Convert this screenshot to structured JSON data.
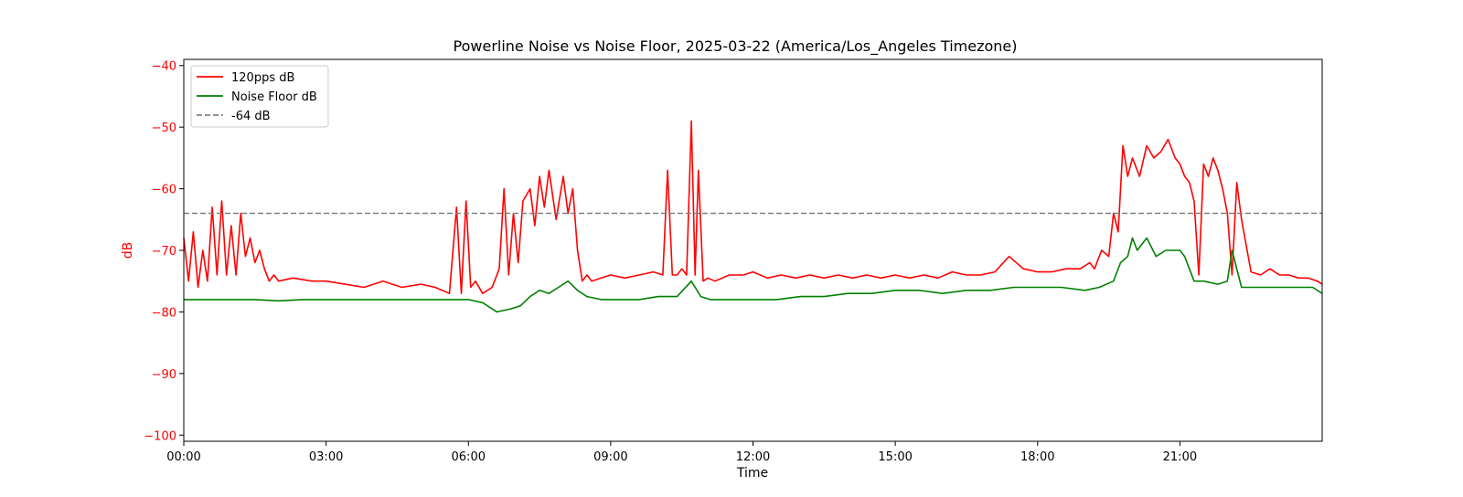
{
  "chart_data": {
    "type": "line",
    "title": "Powerline Noise vs Noise Floor, 2025-03-22 (America/Los_Angeles Timezone)",
    "xlabel": "Time",
    "ylabel": "dB",
    "xlim": [
      0,
      24
    ],
    "ylim": [
      -101,
      -39
    ],
    "x_ticks": [
      {
        "value": 0,
        "label": "00:00"
      },
      {
        "value": 3,
        "label": "03:00"
      },
      {
        "value": 6,
        "label": "06:00"
      },
      {
        "value": 9,
        "label": "09:00"
      },
      {
        "value": 12,
        "label": "12:00"
      },
      {
        "value": 15,
        "label": "15:00"
      },
      {
        "value": 18,
        "label": "18:00"
      },
      {
        "value": 21,
        "label": "21:00"
      }
    ],
    "y_ticks": [
      {
        "value": -40,
        "label": "−40"
      },
      {
        "value": -50,
        "label": "−50"
      },
      {
        "value": -60,
        "label": "−60"
      },
      {
        "value": -70,
        "label": "−70"
      },
      {
        "value": -80,
        "label": "−80"
      },
      {
        "value": -90,
        "label": "−90"
      },
      {
        "value": -100,
        "label": "−100"
      }
    ],
    "legend_position": "top-left",
    "grid": false,
    "axis_color": "#ff0000",
    "series": [
      {
        "name": "120pps dB",
        "color": "#ff0000",
        "style": "solid",
        "x": [
          0,
          0.1,
          0.2,
          0.3,
          0.4,
          0.5,
          0.6,
          0.7,
          0.8,
          0.9,
          1.0,
          1.1,
          1.2,
          1.3,
          1.4,
          1.5,
          1.6,
          1.7,
          1.8,
          1.9,
          2.0,
          2.3,
          2.7,
          3.0,
          3.4,
          3.8,
          4.2,
          4.6,
          5.0,
          5.3,
          5.6,
          5.75,
          5.85,
          5.95,
          6.05,
          6.15,
          6.3,
          6.5,
          6.65,
          6.75,
          6.85,
          6.95,
          7.05,
          7.15,
          7.3,
          7.4,
          7.5,
          7.6,
          7.7,
          7.85,
          8.0,
          8.1,
          8.2,
          8.3,
          8.4,
          8.5,
          8.6,
          8.8,
          9.0,
          9.3,
          9.6,
          9.9,
          10.1,
          10.2,
          10.3,
          10.4,
          10.5,
          10.6,
          10.7,
          10.78,
          10.85,
          10.95,
          11.05,
          11.2,
          11.5,
          11.8,
          12.0,
          12.3,
          12.6,
          12.9,
          13.2,
          13.5,
          13.8,
          14.1,
          14.4,
          14.7,
          15.0,
          15.3,
          15.6,
          15.9,
          16.2,
          16.5,
          16.8,
          17.1,
          17.4,
          17.7,
          18.0,
          18.3,
          18.6,
          18.9,
          19.1,
          19.2,
          19.35,
          19.5,
          19.6,
          19.7,
          19.8,
          19.9,
          20.0,
          20.15,
          20.3,
          20.45,
          20.6,
          20.75,
          20.9,
          21.0,
          21.1,
          21.2,
          21.3,
          21.4,
          21.5,
          21.6,
          21.7,
          21.8,
          21.9,
          22.0,
          22.1,
          22.2,
          22.3,
          22.5,
          22.7,
          22.9,
          23.1,
          23.3,
          23.5,
          23.7,
          23.9,
          24.0
        ],
        "values": [
          -68,
          -75,
          -67,
          -76,
          -70,
          -75,
          -63,
          -74,
          -62,
          -74,
          -66,
          -74,
          -64,
          -71,
          -68,
          -72,
          -70,
          -73,
          -75,
          -74,
          -75,
          -74.5,
          -75,
          -75,
          -75.5,
          -76,
          -75,
          -76,
          -75.5,
          -76,
          -77,
          -63,
          -77,
          -62,
          -76,
          -75,
          -77,
          -76,
          -73,
          -60,
          -74,
          -64,
          -72,
          -62,
          -60,
          -66,
          -58,
          -63,
          -57,
          -65,
          -58,
          -64,
          -60,
          -70,
          -75,
          -74,
          -75,
          -74.5,
          -74,
          -74.5,
          -74,
          -73.5,
          -74,
          -57,
          -74,
          -74,
          -73,
          -74,
          -49,
          -74,
          -57,
          -75,
          -74.5,
          -75,
          -74,
          -74,
          -73.5,
          -74.5,
          -74,
          -74.5,
          -74,
          -74.5,
          -74,
          -74.5,
          -74,
          -74.5,
          -74,
          -74.5,
          -74,
          -74.5,
          -73.5,
          -74,
          -74,
          -73.5,
          -71,
          -73,
          -73.5,
          -73.5,
          -73,
          -73,
          -72,
          -73,
          -70,
          -71,
          -64,
          -67,
          -53,
          -58,
          -55,
          -58,
          -53,
          -55,
          -54,
          -52,
          -55,
          -56,
          -58,
          -59,
          -62,
          -74,
          -56,
          -58,
          -55,
          -57,
          -60,
          -64,
          -74,
          -59,
          -65,
          -73.5,
          -74,
          -73,
          -74,
          -74,
          -74.5,
          -74.5,
          -75,
          -75.5
        ]
      },
      {
        "name": "Noise Floor dB",
        "color": "#008000",
        "style": "solid",
        "x": [
          0,
          0.5,
          1.0,
          1.5,
          2.0,
          2.5,
          3.0,
          3.5,
          4.0,
          4.5,
          5.0,
          5.5,
          6.0,
          6.3,
          6.6,
          6.9,
          7.1,
          7.3,
          7.5,
          7.7,
          7.9,
          8.1,
          8.3,
          8.5,
          8.8,
          9.2,
          9.6,
          10.0,
          10.4,
          10.7,
          10.9,
          11.1,
          11.5,
          12.0,
          12.5,
          13.0,
          13.5,
          14.0,
          14.5,
          15.0,
          15.5,
          16.0,
          16.5,
          17.0,
          17.5,
          18.0,
          18.5,
          19.0,
          19.3,
          19.6,
          19.75,
          19.9,
          20.0,
          20.1,
          20.3,
          20.5,
          20.7,
          20.9,
          21.0,
          21.1,
          21.3,
          21.5,
          21.8,
          22.0,
          22.1,
          22.3,
          22.6,
          23.0,
          23.4,
          23.8,
          24.0
        ],
        "values": [
          -78,
          -78,
          -78,
          -78,
          -78.2,
          -78,
          -78,
          -78,
          -78,
          -78,
          -78,
          -78,
          -78,
          -78.5,
          -80,
          -79.5,
          -79,
          -77.5,
          -76.5,
          -77,
          -76,
          -75,
          -76.5,
          -77.5,
          -78,
          -78,
          -78,
          -77.5,
          -77.5,
          -75,
          -77.5,
          -78,
          -78,
          -78,
          -78,
          -77.5,
          -77.5,
          -77,
          -77,
          -76.5,
          -76.5,
          -77,
          -76.5,
          -76.5,
          -76,
          -76,
          -76,
          -76.5,
          -76,
          -75,
          -72,
          -71,
          -68,
          -70,
          -68,
          -71,
          -70,
          -70,
          -70,
          -71,
          -75,
          -75,
          -75.5,
          -75,
          -70,
          -76,
          -76,
          -76,
          -76,
          -76,
          -77
        ]
      },
      {
        "name": "-64 dB",
        "color": "#808080",
        "style": "dashed",
        "x": [
          0,
          24
        ],
        "values": [
          -64,
          -64
        ]
      }
    ]
  }
}
